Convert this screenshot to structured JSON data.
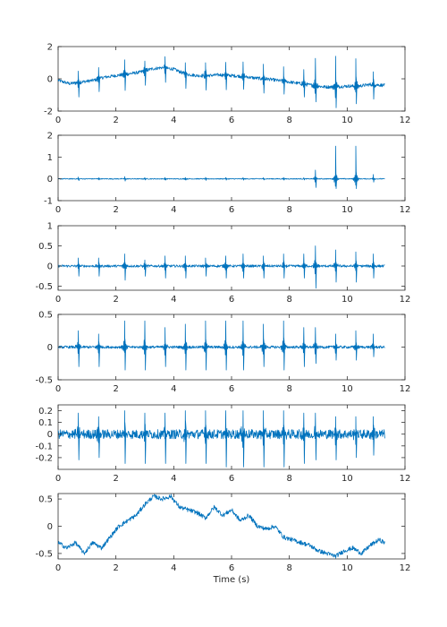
{
  "figure": {
    "xlabel": "Time (s)",
    "trace_color": "#0072BD"
  },
  "chart_data": [
    {
      "type": "line",
      "title": "",
      "xlabel": "",
      "ylabel": "",
      "xlim": [
        0,
        12
      ],
      "ylim": [
        -2,
        2
      ],
      "xticks": [
        0,
        2,
        4,
        6,
        8,
        10,
        12
      ],
      "yticks": [
        -2,
        0,
        2
      ],
      "grid": false,
      "series": [
        {
          "x": [
            0,
            0.4,
            0.8,
            1.2,
            1.6,
            2.0,
            2.4,
            2.8,
            3.2,
            3.6,
            4.0,
            4.4,
            4.8,
            5.2,
            5.6,
            6.0,
            6.4,
            6.8,
            7.2,
            7.6,
            8.0,
            8.4,
            8.8,
            9.2,
            9.6,
            10.0,
            10.4,
            10.8,
            11.3
          ],
          "y": [
            -0.1,
            -0.3,
            -0.2,
            -0.1,
            0.1,
            0.2,
            0.3,
            0.4,
            0.6,
            0.7,
            0.6,
            0.3,
            0.2,
            0.2,
            0.25,
            0.2,
            0.15,
            0.05,
            0.0,
            -0.1,
            -0.2,
            -0.3,
            -0.4,
            -0.5,
            -0.5,
            -0.45,
            -0.45,
            -0.35,
            -0.4
          ],
          "spikes": {
            "times": [
              0.7,
              1.4,
              2.3,
              3.0,
              3.7,
              4.4,
              5.1,
              5.8,
              6.4,
              7.1,
              7.8,
              8.5,
              8.9,
              9.6,
              10.3,
              10.9
            ],
            "up": [
              0.7,
              0.7,
              0.9,
              0.6,
              0.7,
              0.7,
              0.8,
              0.8,
              0.9,
              0.9,
              0.9,
              0.9,
              1.7,
              1.9,
              1.7,
              0.8
            ],
            "down": [
              -0.9,
              -0.8,
              -1.0,
              -0.9,
              -0.9,
              -0.9,
              -0.9,
              -0.9,
              -0.8,
              -0.9,
              -0.8,
              -0.8,
              -1.0,
              -1.3,
              -1.1,
              -0.9
            ]
          },
          "noise": 0.1
        }
      ]
    },
    {
      "type": "line",
      "title": "",
      "xlabel": "",
      "ylabel": "",
      "xlim": [
        0,
        12
      ],
      "ylim": [
        -1,
        2
      ],
      "xticks": [
        0,
        2,
        4,
        6,
        8,
        10,
        12
      ],
      "yticks": [
        -1,
        0,
        1,
        2
      ],
      "grid": false,
      "series": [
        {
          "x": [
            0,
            11.3
          ],
          "y": [
            0,
            0
          ],
          "spikes": {
            "times": [
              0.7,
              1.4,
              2.3,
              3.0,
              3.7,
              4.4,
              5.1,
              5.8,
              6.4,
              7.1,
              7.8,
              8.5,
              8.9,
              9.6,
              10.3,
              10.9
            ],
            "up": [
              0.08,
              0.05,
              0.1,
              0.05,
              0.06,
              0.06,
              0.07,
              0.06,
              0.06,
              0.05,
              0.06,
              0.05,
              0.4,
              1.5,
              1.5,
              0.2
            ],
            "down": [
              -0.08,
              -0.05,
              -0.1,
              -0.05,
              -0.06,
              -0.06,
              -0.07,
              -0.06,
              -0.06,
              -0.05,
              -0.06,
              -0.05,
              -0.4,
              -0.45,
              -0.45,
              -0.15
            ]
          },
          "noise": 0.02
        }
      ]
    },
    {
      "type": "line",
      "title": "",
      "xlabel": "",
      "ylabel": "",
      "xlim": [
        0,
        12
      ],
      "ylim": [
        -0.6,
        1
      ],
      "xticks": [
        0,
        2,
        4,
        6,
        8,
        10,
        12
      ],
      "yticks": [
        -0.5,
        0,
        0.5,
        1
      ],
      "grid": false,
      "series": [
        {
          "x": [
            0,
            11.3
          ],
          "y": [
            0,
            0
          ],
          "spikes": {
            "times": [
              0.7,
              1.4,
              2.3,
              3.0,
              3.7,
              4.4,
              5.1,
              5.8,
              6.4,
              7.1,
              7.8,
              8.5,
              8.9,
              9.6,
              10.3,
              10.9
            ],
            "up": [
              0.2,
              0.2,
              0.3,
              0.15,
              0.25,
              0.25,
              0.2,
              0.25,
              0.3,
              0.25,
              0.3,
              0.3,
              0.5,
              0.4,
              0.35,
              0.3
            ],
            "down": [
              -0.25,
              -0.25,
              -0.35,
              -0.25,
              -0.3,
              -0.3,
              -0.25,
              -0.3,
              -0.3,
              -0.3,
              -0.3,
              -0.3,
              -0.55,
              -0.4,
              -0.4,
              -0.3
            ]
          },
          "noise": 0.03
        }
      ]
    },
    {
      "type": "line",
      "title": "",
      "xlabel": "",
      "ylabel": "",
      "xlim": [
        0,
        12
      ],
      "ylim": [
        -0.5,
        0.5
      ],
      "xticks": [
        0,
        2,
        4,
        6,
        8,
        10,
        12
      ],
      "yticks": [
        -0.5,
        0,
        0.5
      ],
      "grid": false,
      "series": [
        {
          "x": [
            0,
            11.3
          ],
          "y": [
            0,
            0
          ],
          "spikes": {
            "times": [
              0.7,
              1.4,
              2.3,
              3.0,
              3.7,
              4.4,
              5.1,
              5.8,
              6.4,
              7.1,
              7.8,
              8.5,
              8.9,
              9.6,
              10.3,
              10.9
            ],
            "up": [
              0.25,
              0.2,
              0.4,
              0.4,
              0.3,
              0.35,
              0.4,
              0.4,
              0.4,
              0.35,
              0.4,
              0.3,
              0.3,
              0.2,
              0.25,
              0.2
            ],
            "down": [
              -0.3,
              -0.3,
              -0.35,
              -0.35,
              -0.3,
              -0.35,
              -0.35,
              -0.35,
              -0.35,
              -0.3,
              -0.35,
              -0.3,
              -0.25,
              -0.2,
              -0.2,
              -0.15
            ]
          },
          "noise": 0.02
        }
      ]
    },
    {
      "type": "line",
      "title": "",
      "xlabel": "",
      "ylabel": "",
      "xlim": [
        0,
        12
      ],
      "ylim": [
        -0.3,
        0.25
      ],
      "xticks": [
        0,
        2,
        4,
        6,
        8,
        10,
        12
      ],
      "yticks": [
        -0.2,
        -0.1,
        0,
        0.1,
        0.2
      ],
      "grid": false,
      "series": [
        {
          "x": [
            0,
            11.3
          ],
          "y": [
            0,
            0
          ],
          "spikes": {
            "times": [
              0.7,
              1.4,
              2.3,
              3.0,
              3.7,
              4.4,
              5.1,
              5.8,
              6.4,
              7.1,
              7.8,
              8.5,
              8.9,
              9.6,
              10.3,
              10.9
            ],
            "up": [
              0.18,
              0.15,
              0.2,
              0.18,
              0.18,
              0.2,
              0.2,
              0.2,
              0.2,
              0.2,
              0.2,
              0.18,
              0.18,
              0.15,
              0.15,
              0.15
            ],
            "down": [
              -0.22,
              -0.2,
              -0.25,
              -0.25,
              -0.25,
              -0.25,
              -0.25,
              -0.28,
              -0.28,
              -0.28,
              -0.28,
              -0.25,
              -0.22,
              -0.22,
              -0.2,
              -0.18
            ]
          },
          "noise": 0.04
        }
      ]
    },
    {
      "type": "line",
      "title": "",
      "xlabel": "Time (s)",
      "ylabel": "",
      "xlim": [
        0,
        12
      ],
      "ylim": [
        -0.6,
        0.6
      ],
      "xticks": [
        0,
        2,
        4,
        6,
        8,
        10,
        12
      ],
      "yticks": [
        -0.5,
        0,
        0.5
      ],
      "grid": false,
      "series": [
        {
          "x": [
            0,
            0.3,
            0.6,
            0.9,
            1.2,
            1.5,
            1.8,
            2.1,
            2.4,
            2.7,
            3.0,
            3.3,
            3.6,
            3.9,
            4.2,
            4.5,
            4.8,
            5.1,
            5.4,
            5.7,
            6.0,
            6.3,
            6.6,
            6.9,
            7.2,
            7.5,
            7.8,
            8.1,
            8.4,
            8.7,
            9.0,
            9.3,
            9.6,
            9.9,
            10.2,
            10.5,
            10.8,
            11.1,
            11.3
          ],
          "y": [
            -0.3,
            -0.4,
            -0.3,
            -0.5,
            -0.3,
            -0.4,
            -0.2,
            0.0,
            0.1,
            0.2,
            0.4,
            0.55,
            0.5,
            0.55,
            0.35,
            0.3,
            0.25,
            0.15,
            0.35,
            0.2,
            0.3,
            0.1,
            0.2,
            0.0,
            -0.05,
            0.0,
            -0.2,
            -0.25,
            -0.3,
            -0.35,
            -0.45,
            -0.5,
            -0.55,
            -0.45,
            -0.4,
            -0.5,
            -0.35,
            -0.25,
            -0.3
          ],
          "noise": 0.04
        }
      ]
    }
  ]
}
